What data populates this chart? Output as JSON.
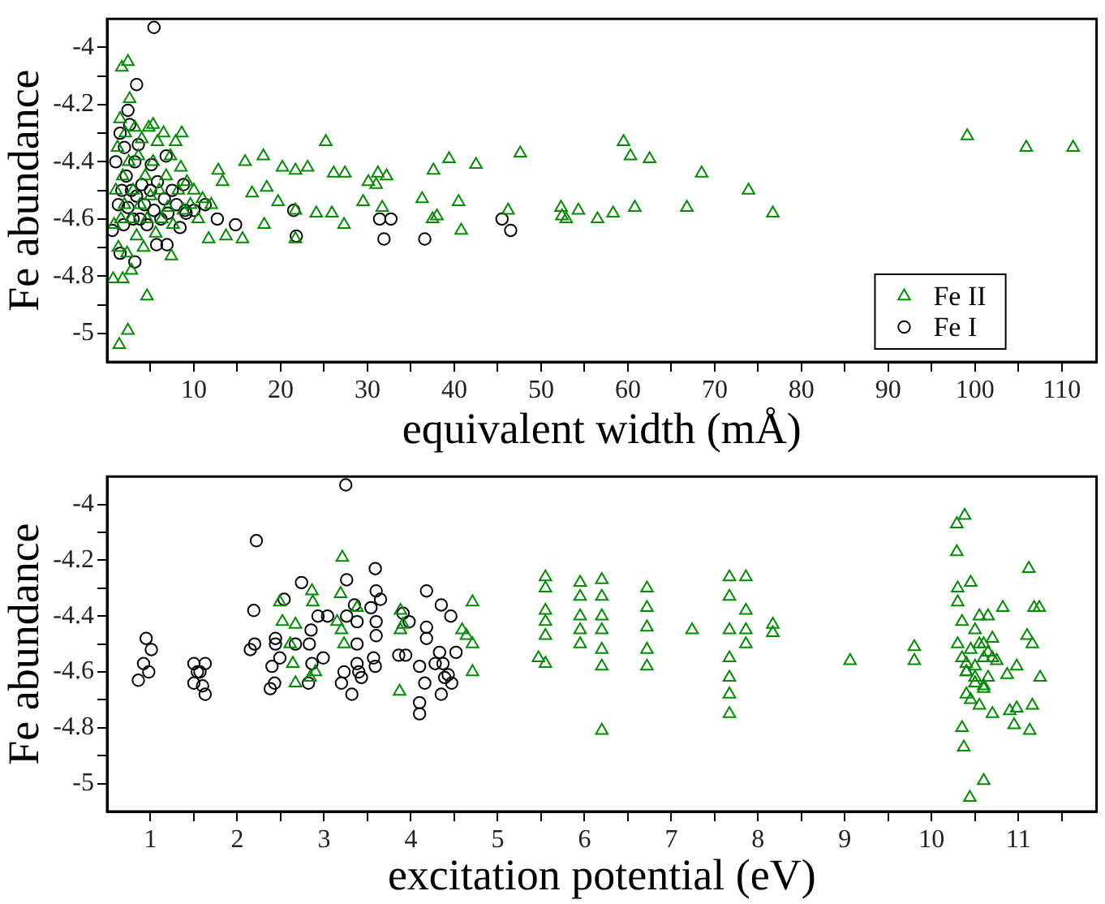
{
  "chart_data": [
    {
      "type": "scatter",
      "xlabel": "equivalent width (mÅ)",
      "ylabel": "Fe abundance",
      "xlim": [
        0,
        114
      ],
      "ylim": [
        -5.1,
        -3.9
      ],
      "xticks": [
        {
          "value": 5,
          "label": null
        },
        10,
        {
          "value": 15,
          "label": null
        },
        20,
        {
          "value": 25,
          "label": null
        },
        30,
        {
          "value": 35,
          "label": null
        },
        40,
        {
          "value": 45,
          "label": null
        },
        50,
        {
          "value": 55,
          "label": null
        },
        60,
        {
          "value": 65,
          "label": null
        },
        70,
        {
          "value": 75,
          "label": null
        },
        80,
        {
          "value": 85,
          "label": null
        },
        90,
        {
          "value": 95,
          "label": null
        },
        100,
        {
          "value": 105,
          "label": null
        },
        110
      ],
      "yticks": [
        -5,
        {
          "value": -4.9,
          "label": null
        },
        -4.8,
        {
          "value": -4.7,
          "label": null
        },
        -4.6,
        {
          "value": -4.5,
          "label": null
        },
        -4.4,
        {
          "value": -4.3,
          "label": null
        },
        -4.2,
        {
          "value": -4.1,
          "label": null
        },
        -4
      ],
      "grid": false,
      "legend": "bottom right",
      "series": [
        {
          "name": "Fe II",
          "color": "#008c00",
          "marker": "triangle",
          "x": [
            5.3,
            8.6,
            12.8,
            15.9,
            18,
            20.2,
            21.7,
            23.1,
            25.2,
            26.1,
            27.4,
            30.1,
            31.2,
            13.3,
            18.4,
            19.7,
            21.7,
            24.1,
            25.9,
            27.3,
            29.5,
            18.1,
            15.6,
            13.7,
            11.7,
            21.7,
            16.7,
            7.4,
            4.6,
            2.4,
            1.4,
            2.4,
            1.7,
            1.8,
            0.7,
            2.8,
            99.1,
            105.9,
            111.3,
            59.5,
            60.3,
            62.5,
            68.5,
            73.9,
            76.7,
            66.8,
            60.8,
            58.3,
            56.5,
            54.3,
            52.9,
            52.4,
            52.3,
            46.2,
            47.6,
            42.5,
            39.4,
            37.6,
            36.3,
            37.5,
            38,
            40.5,
            40.8,
            32.2,
            31.7,
            31,
            0.8,
            1,
            1.2,
            1.3,
            1.5,
            1.6,
            1.8,
            2,
            2.1,
            2.3,
            2.5,
            2.6,
            2.8,
            3,
            3.2,
            3.4,
            3.6,
            3.8,
            4,
            4.2,
            4.4,
            4.6,
            4.8,
            5,
            5.3,
            5.6,
            5.8,
            6,
            6.3,
            6.5,
            6.8,
            7,
            7.3,
            7.6,
            7.9,
            8.2,
            8.5,
            8.8,
            9.2,
            9.6,
            10,
            10.5,
            11,
            12
          ],
          "values": [
            -4.27,
            -4.3,
            -4.43,
            -4.4,
            -4.38,
            -4.42,
            -4.43,
            -4.42,
            -4.33,
            -4.44,
            -4.44,
            -4.47,
            -4.44,
            -4.47,
            -4.49,
            -4.54,
            -4.57,
            -4.58,
            -4.58,
            -4.62,
            -4.54,
            -4.62,
            -4.67,
            -4.66,
            -4.67,
            -4.67,
            -4.51,
            -4.73,
            -4.87,
            -4.99,
            -5.04,
            -4.05,
            -4.07,
            -4.81,
            -4.81,
            -4.78,
            -4.31,
            -4.35,
            -4.35,
            -4.33,
            -4.38,
            -4.39,
            -4.44,
            -4.5,
            -4.58,
            -4.56,
            -4.56,
            -4.58,
            -4.6,
            -4.57,
            -4.6,
            -4.59,
            -4.56,
            -4.57,
            -4.37,
            -4.41,
            -4.39,
            -4.43,
            -4.53,
            -4.6,
            -4.59,
            -4.54,
            -4.64,
            -4.45,
            -4.56,
            -4.48,
            -4.62,
            -4.5,
            -4.35,
            -4.7,
            -4.25,
            -4.6,
            -4.45,
            -4.55,
            -4.3,
            -4.72,
            -4.4,
            -4.18,
            -4.6,
            -4.5,
            -4.28,
            -4.66,
            -4.38,
            -4.55,
            -4.32,
            -4.7,
            -4.45,
            -4.6,
            -4.28,
            -4.52,
            -4.4,
            -4.65,
            -4.33,
            -4.5,
            -4.6,
            -4.3,
            -4.45,
            -4.56,
            -4.38,
            -4.62,
            -4.33,
            -4.5,
            -4.42,
            -4.57,
            -4.47,
            -4.55,
            -4.5,
            -4.6,
            -4.53,
            -4.55
          ]
        },
        {
          "name": "Fe I",
          "color": "#000000",
          "marker": "circle",
          "x": [
            31.4,
            32.7,
            31.9,
            36.6,
            45.5,
            46.5,
            5.4,
            3.4,
            2.4,
            21.5,
            21.8,
            14.8,
            12.7,
            11.3,
            8.4,
            9.1,
            3.2,
            1.5,
            0.6,
            5.7,
            6.9,
            6.8,
            5.1,
            8.8,
            1,
            1.3,
            1.5,
            1.7,
            1.9,
            2,
            2.2,
            2.4,
            2.6,
            2.8,
            3,
            3.2,
            3.4,
            3.6,
            3.8,
            4,
            4.3,
            4.6,
            5,
            5.4,
            5.8,
            6.2,
            6.6,
            7,
            7.5,
            8,
            9,
            10
          ],
          "values": [
            -4.6,
            -4.6,
            -4.67,
            -4.67,
            -4.6,
            -4.64,
            -3.93,
            -4.13,
            -4.22,
            -4.57,
            -4.66,
            -4.62,
            -4.6,
            -4.55,
            -4.63,
            -4.58,
            -4.75,
            -4.72,
            -4.64,
            -4.69,
            -4.69,
            -4.38,
            -4.41,
            -4.48,
            -4.4,
            -4.55,
            -4.3,
            -4.5,
            -4.62,
            -4.35,
            -4.45,
            -4.56,
            -4.27,
            -4.5,
            -4.6,
            -4.4,
            -4.52,
            -4.34,
            -4.6,
            -4.48,
            -4.55,
            -4.62,
            -4.5,
            -4.57,
            -4.47,
            -4.6,
            -4.53,
            -4.58,
            -4.5,
            -4.55,
            -4.57,
            -4.57
          ]
        }
      ]
    },
    {
      "type": "scatter",
      "xlabel": "excitation potential (eV)",
      "ylabel": "Fe abundance",
      "xlim": [
        0.5,
        11.9
      ],
      "ylim": [
        -5.1,
        -3.9
      ],
      "xticks": [
        1,
        {
          "value": 1.5,
          "label": null
        },
        2,
        {
          "value": 2.5,
          "label": null
        },
        3,
        {
          "value": 3.5,
          "label": null
        },
        4,
        {
          "value": 4.5,
          "label": null
        },
        5,
        {
          "value": 5.5,
          "label": null
        },
        6,
        {
          "value": 6.5,
          "label": null
        },
        7,
        {
          "value": 7.5,
          "label": null
        },
        8,
        {
          "value": 8.5,
          "label": null
        },
        9,
        {
          "value": 9.5,
          "label": null
        },
        10,
        {
          "value": 10.5,
          "label": null
        },
        11,
        {
          "value": 11.5,
          "label": null
        }
      ],
      "yticks": [
        -5,
        {
          "value": -4.9,
          "label": null
        },
        -4.8,
        {
          "value": -4.7,
          "label": null
        },
        -4.6,
        {
          "value": -4.5,
          "label": null
        },
        -4.4,
        {
          "value": -4.3,
          "label": null
        },
        -4.2,
        {
          "value": -4.1,
          "label": null
        },
        -4
      ],
      "grid": false,
      "series": [
        {
          "color": "#008c00",
          "marker": "triangle",
          "x": [
            3.21,
            2.49,
            2.52,
            2.67,
            2.61,
            2.64,
            2.67,
            2.86,
            2.87,
            2.84,
            2.9,
            3.19,
            3.2,
            3.23,
            3.38,
            3.15,
            3.88,
            3.88,
            3.87,
            3.91,
            4.59,
            4.71,
            4.71,
            4.71,
            4.64,
            5.47,
            5.55,
            5.55,
            5.55,
            5.55,
            5.55,
            5.55,
            5.95,
            5.95,
            5.95,
            5.95,
            5.95,
            6.2,
            6.2,
            6.2,
            6.2,
            6.2,
            6.2,
            6.2,
            6.72,
            6.72,
            6.72,
            6.72,
            6.72,
            7.24,
            7.67,
            7.67,
            7.67,
            7.67,
            7.67,
            7.67,
            7.67,
            7.86,
            7.86,
            7.86,
            7.86,
            8.17,
            8.17,
            9.06,
            9.8,
            9.8,
            10.38,
            10.29,
            10.29,
            10.37,
            10.6,
            10.44,
            11.12,
            11.18,
            11.24,
            11.16,
            11.25,
            11.16,
            11.13,
            10.95,
            10.98,
            10.9,
            10.98,
            10.87,
            10.82,
            11.1,
            10.3,
            10.35,
            10.4,
            10.45,
            10.5,
            10.55,
            10.6,
            10.65,
            10.7,
            10.75,
            10.3,
            10.35,
            10.4,
            10.45,
            10.5,
            10.55,
            10.6,
            10.65,
            10.7,
            10.3,
            10.4,
            10.5,
            10.6,
            10.7,
            10.45,
            10.55,
            10.35,
            10.65,
            10.5,
            10.4,
            10.6
          ],
          "values": [
            -4.19,
            -4.35,
            -4.42,
            -4.43,
            -4.5,
            -4.57,
            -4.64,
            -4.31,
            -4.35,
            -4.62,
            -4.6,
            -4.32,
            -4.45,
            -4.5,
            -4.37,
            -4.42,
            -4.38,
            -4.45,
            -4.67,
            -4.43,
            -4.45,
            -4.5,
            -4.35,
            -4.6,
            -4.47,
            -4.55,
            -4.26,
            -4.3,
            -4.38,
            -4.42,
            -4.47,
            -4.57,
            -4.28,
            -4.33,
            -4.4,
            -4.45,
            -4.5,
            -4.27,
            -4.33,
            -4.4,
            -4.45,
            -4.52,
            -4.58,
            -4.81,
            -4.3,
            -4.37,
            -4.44,
            -4.52,
            -4.58,
            -4.45,
            -4.26,
            -4.33,
            -4.45,
            -4.55,
            -4.62,
            -4.68,
            -4.75,
            -4.26,
            -4.38,
            -4.45,
            -4.5,
            -4.43,
            -4.46,
            -4.56,
            -4.51,
            -4.56,
            -4.04,
            -4.07,
            -4.17,
            -4.87,
            -4.99,
            -5.05,
            -4.23,
            -4.37,
            -4.37,
            -4.5,
            -4.62,
            -4.72,
            -4.81,
            -4.79,
            -4.73,
            -4.74,
            -4.58,
            -4.61,
            -4.37,
            -4.47,
            -4.5,
            -4.55,
            -4.6,
            -4.52,
            -4.58,
            -4.5,
            -4.55,
            -4.62,
            -4.48,
            -4.56,
            -4.35,
            -4.42,
            -4.68,
            -4.7,
            -4.64,
            -4.72,
            -4.66,
            -4.4,
            -4.75,
            -4.3,
            -4.6,
            -4.45,
            -4.65,
            -4.55,
            -4.28,
            -4.4,
            -4.8,
            -4.53,
            -4.62,
            -4.57,
            -4.5
          ]
        },
        {
          "color": "#000000",
          "marker": "circle",
          "x": [
            0.86,
            0.92,
            0.95,
            1.01,
            0.98,
            1.5,
            1.5,
            1.57,
            1.63,
            1.63,
            1.6,
            1.54,
            2.22,
            2.19,
            2.15,
            2.2,
            2.38,
            2.43,
            2.44,
            2.44,
            2.49,
            2.4,
            2.54,
            2.67,
            2.74,
            2.82,
            2.83,
            2.86,
            2.85,
            2.93,
            2.99,
            3.04,
            3.2,
            3.23,
            3.25,
            3.26,
            3.26,
            3.32,
            3.35,
            3.38,
            3.4,
            3.38,
            3.38,
            3.43,
            3.54,
            3.59,
            3.6,
            3.6,
            3.6,
            3.57,
            3.59,
            3.65,
            3.86,
            3.94,
            3.91,
            3.98,
            4.1,
            4.1,
            4.1,
            4.16,
            4.18,
            4.18,
            4.18,
            4.28,
            4.33,
            4.35,
            4.37,
            4.35,
            4.39,
            4.43,
            4.46,
            4.47,
            4.52
          ],
          "values": [
            -4.63,
            -4.57,
            -4.48,
            -4.52,
            -4.6,
            -4.57,
            -4.64,
            -4.6,
            -4.57,
            -4.68,
            -4.65,
            -4.6,
            -4.13,
            -4.38,
            -4.52,
            -4.5,
            -4.66,
            -4.64,
            -4.48,
            -4.5,
            -4.55,
            -4.58,
            -4.34,
            -4.5,
            -4.28,
            -4.64,
            -4.5,
            -4.57,
            -4.45,
            -4.4,
            -4.55,
            -4.4,
            -4.64,
            -4.6,
            -3.93,
            -4.27,
            -4.4,
            -4.68,
            -4.36,
            -4.42,
            -4.6,
            -4.5,
            -4.57,
            -4.62,
            -4.37,
            -4.23,
            -4.31,
            -4.42,
            -4.47,
            -4.55,
            -4.58,
            -4.34,
            -4.54,
            -4.54,
            -4.39,
            -4.42,
            -4.58,
            -4.71,
            -4.75,
            -4.64,
            -4.31,
            -4.44,
            -4.48,
            -4.57,
            -4.53,
            -4.36,
            -4.57,
            -4.68,
            -4.62,
            -4.61,
            -4.4,
            -4.64,
            -4.53
          ]
        }
      ]
    }
  ]
}
